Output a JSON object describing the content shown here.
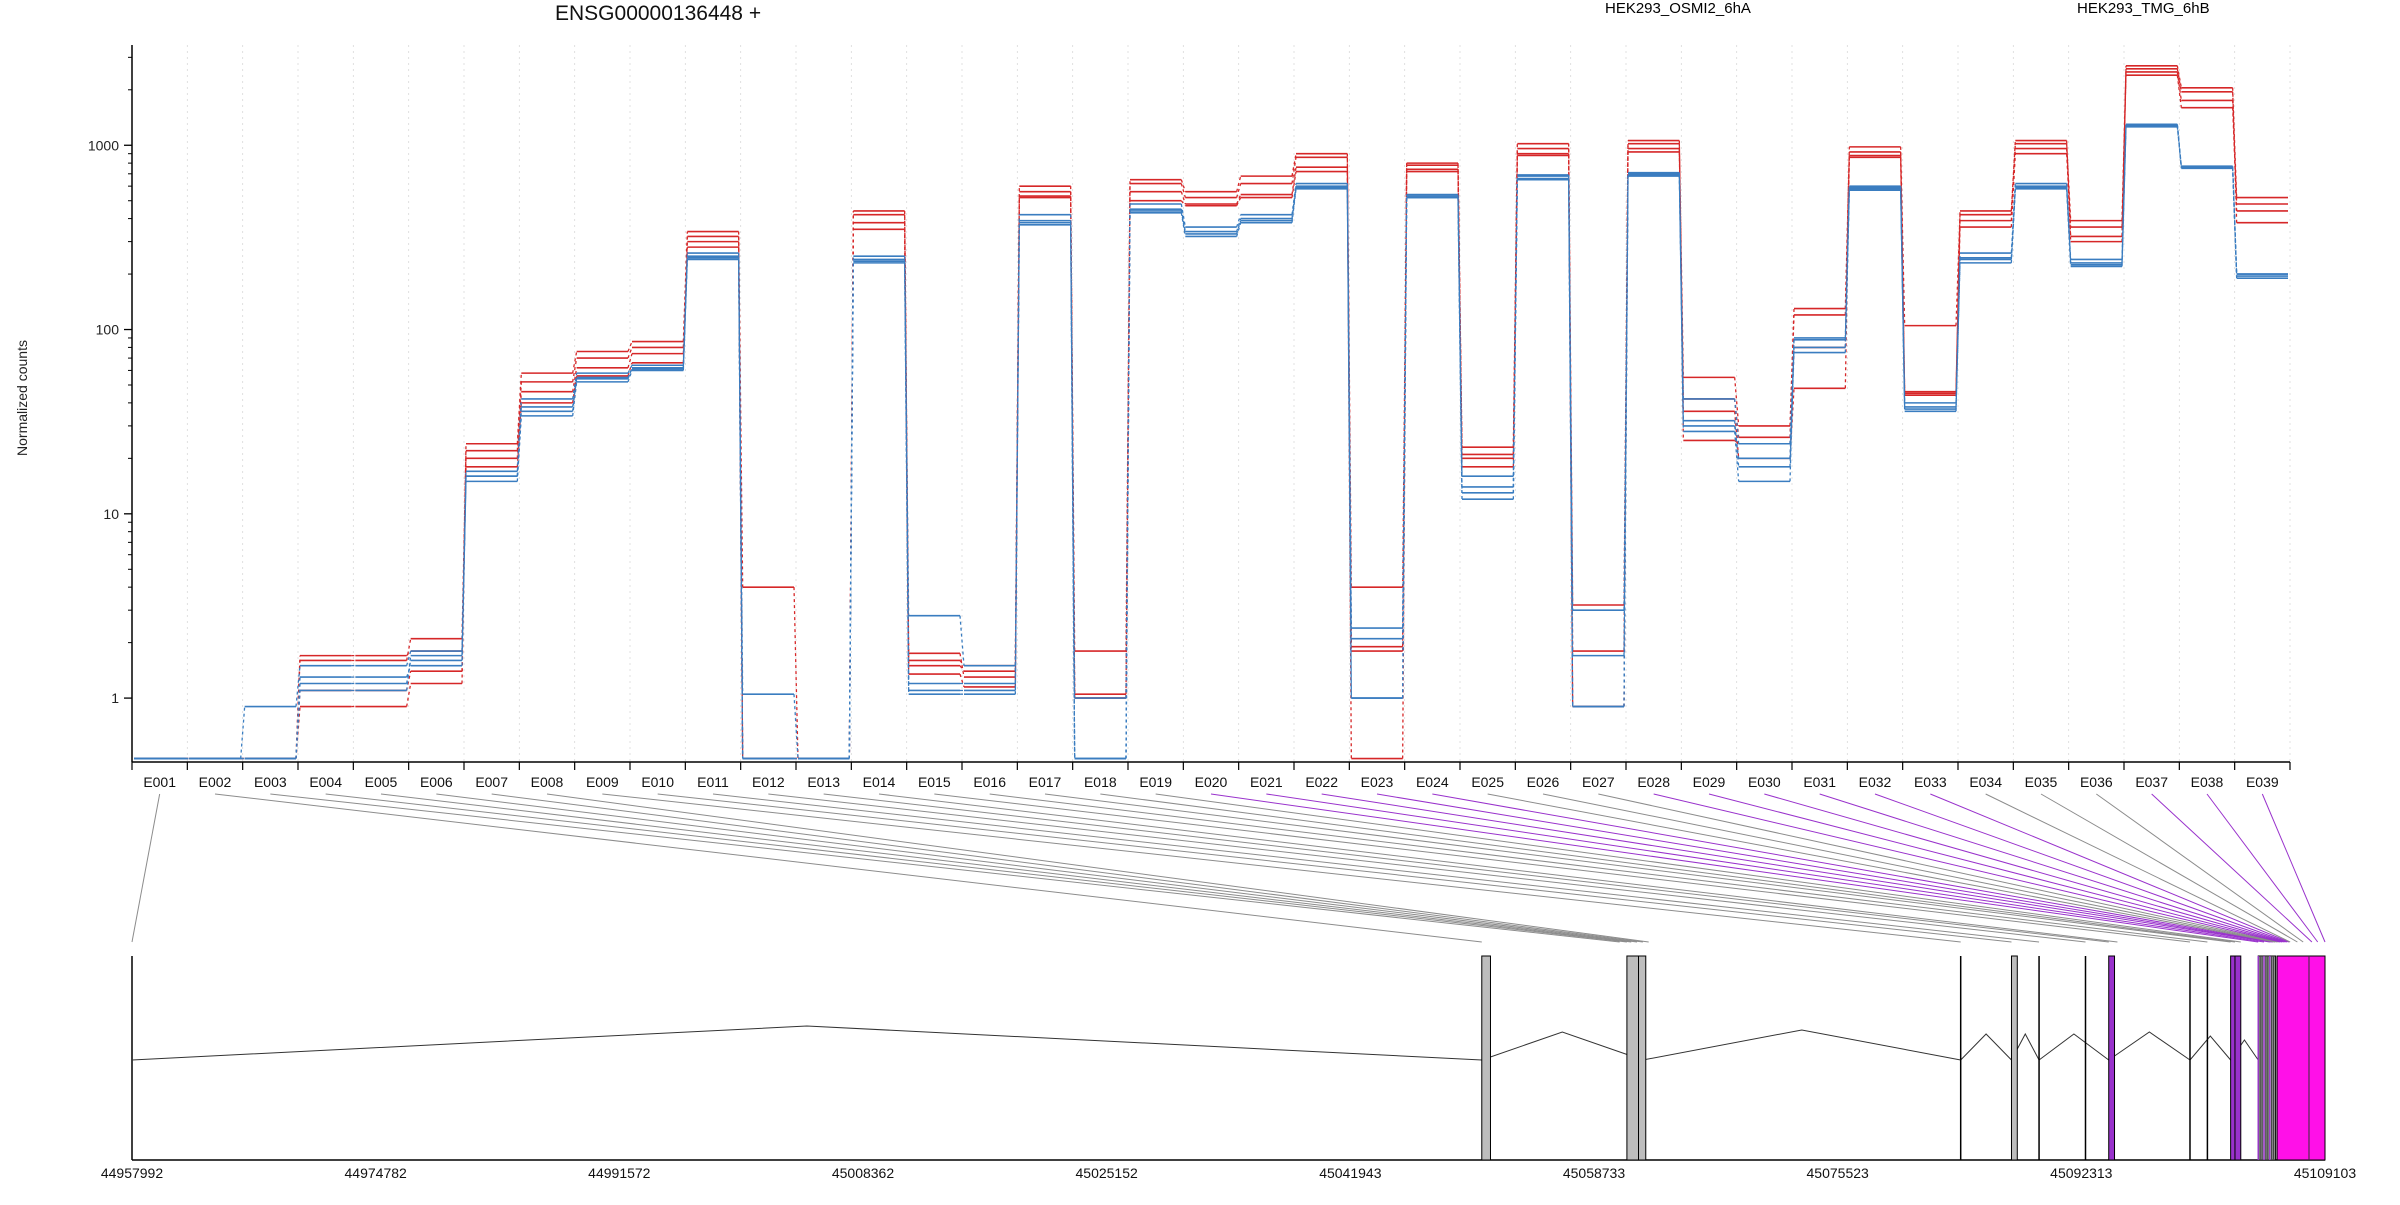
{
  "chart_data": {
    "type": "line",
    "title": "ENSG00000136448 +",
    "ylabel": "Normalized counts",
    "yscale": "log",
    "ylim": [
      0.45,
      3500
    ],
    "yticks": [
      {
        "value": 1,
        "label": "1"
      },
      {
        "value": 10,
        "label": "10"
      },
      {
        "value": 100,
        "label": "100"
      },
      {
        "value": 1000,
        "label": "1000"
      }
    ],
    "legend_placement": "top",
    "categories": [
      "E001",
      "E002",
      "E003",
      "E004",
      "E005",
      "E006",
      "E007",
      "E008",
      "E009",
      "E010",
      "E011",
      "E012",
      "E013",
      "E014",
      "E015",
      "E016",
      "E017",
      "E018",
      "E019",
      "E020",
      "E021",
      "E022",
      "E023",
      "E024",
      "E025",
      "E026",
      "E027",
      "E028",
      "E029",
      "E030",
      "E031",
      "E032",
      "E033",
      "E034",
      "E035",
      "E036",
      "E037",
      "E038",
      "E039"
    ],
    "colors": {
      "osmi": "#d62728",
      "tmg": "#3a7dc0",
      "purple": "#9932cc",
      "magenta": "#ff10e8",
      "gray": "#bdbdbd"
    },
    "groups": [
      {
        "name": "HEK293_OSMI2_6hA",
        "color": "#d62728"
      },
      {
        "name": "HEK293_TMG_6hB",
        "color": "#3a7dc0"
      }
    ],
    "series": [
      {
        "group": 0,
        "values": [
          0.47,
          0.47,
          0.47,
          1.6,
          1.6,
          2.1,
          22,
          52,
          70,
          80,
          320,
          4.0,
          0.47,
          420,
          1.6,
          1.5,
          560,
          1.8,
          620,
          520,
          620,
          860,
          4.0,
          780,
          21,
          960,
          3.2,
          1020,
          55,
          30,
          130,
          920,
          105,
          420,
          1020,
          390,
          2600,
          1950,
          520
        ]
      },
      {
        "group": 0,
        "values": [
          0.47,
          0.47,
          0.47,
          0.9,
          0.9,
          1.2,
          20,
          46,
          62,
          74,
          300,
          0.47,
          0.47,
          380,
          1.35,
          1.15,
          530,
          1.0,
          560,
          480,
          540,
          760,
          0.47,
          720,
          18,
          900,
          0.9,
          960,
          36,
          20,
          48,
          880,
          46,
          390,
          960,
          320,
          2500,
          1750,
          440
        ]
      },
      {
        "group": 0,
        "values": [
          0.47,
          0.47,
          0.47,
          1.1,
          1.1,
          1.4,
          24,
          58,
          76,
          86,
          340,
          0.47,
          0.47,
          440,
          1.75,
          1.3,
          600,
          1.05,
          650,
          560,
          680,
          900,
          1.8,
          800,
          23,
          1020,
          1.8,
          1060,
          25,
          24,
          80,
          980,
          44,
          440,
          1060,
          300,
          2700,
          2050,
          380
        ]
      },
      {
        "group": 0,
        "values": [
          0.47,
          0.47,
          0.47,
          1.7,
          1.7,
          1.8,
          18,
          40,
          56,
          66,
          280,
          0.47,
          0.47,
          350,
          1.5,
          1.4,
          520,
          1.0,
          500,
          470,
          520,
          720,
          1.9,
          740,
          20,
          880,
          0.9,
          920,
          42,
          26,
          120,
          860,
          45,
          360,
          900,
          360,
          2400,
          1600,
          480
        ]
      },
      {
        "group": 1,
        "values": [
          0.47,
          0.47,
          0.9,
          1.5,
          1.5,
          1.8,
          15,
          34,
          52,
          60,
          250,
          1.05,
          0.47,
          240,
          2.8,
          1.5,
          380,
          1.0,
          450,
          340,
          400,
          600,
          1.0,
          520,
          14,
          690,
          0.9,
          700,
          42,
          24,
          88,
          600,
          37,
          240,
          600,
          240,
          1300,
          760,
          200
        ]
      },
      {
        "group": 1,
        "values": [
          0.47,
          0.47,
          0.47,
          1.3,
          1.3,
          1.5,
          16,
          38,
          54,
          62,
          240,
          0.47,
          0.47,
          230,
          1.05,
          1.05,
          370,
          0.47,
          440,
          330,
          390,
          590,
          2.1,
          530,
          12,
          660,
          1.7,
          680,
          32,
          18,
          75,
          580,
          38,
          230,
          580,
          220,
          1260,
          760,
          190
        ]
      },
      {
        "group": 1,
        "values": [
          0.47,
          0.47,
          0.47,
          1.1,
          1.1,
          1.7,
          17,
          42,
          58,
          64,
          260,
          0.47,
          0.47,
          250,
          1.2,
          1.2,
          420,
          0.47,
          480,
          360,
          420,
          620,
          2.4,
          540,
          16,
          680,
          3.0,
          710,
          28,
          15,
          90,
          590,
          40,
          260,
          620,
          230,
          1280,
          770,
          200
        ]
      },
      {
        "group": 1,
        "values": [
          0.47,
          0.47,
          0.47,
          1.2,
          1.2,
          1.6,
          16,
          36,
          55,
          61,
          245,
          0.47,
          0.47,
          235,
          1.1,
          1.1,
          390,
          0.47,
          430,
          320,
          380,
          580,
          1.0,
          520,
          13,
          650,
          0.9,
          690,
          30,
          20,
          80,
          570,
          36,
          245,
          590,
          225,
          1290,
          750,
          195
        ]
      }
    ],
    "genomic_ticks": [
      "44957992",
      "44974782",
      "44991572",
      "45008362",
      "45025152",
      "45041943",
      "45058733",
      "45075523",
      "45092313",
      "45109103"
    ]
  }
}
